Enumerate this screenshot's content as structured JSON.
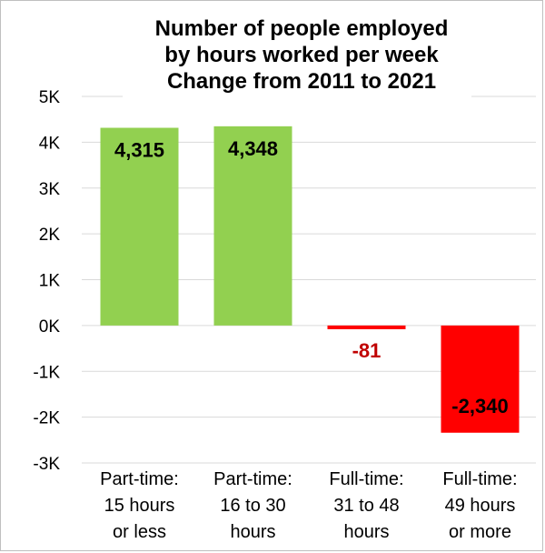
{
  "chart_data": {
    "type": "bar",
    "title": [
      "Number of people employed",
      "by hours worked per week",
      "Change from 2011 to 2021"
    ],
    "xlabel": "",
    "ylabel": "",
    "categories": [
      [
        "Part-time:",
        "15 hours",
        "or less"
      ],
      [
        "Part-time:",
        "16 to 30",
        "hours"
      ],
      [
        "Full-time:",
        "31 to 48",
        "hours"
      ],
      [
        "Full-time:",
        "49 hours",
        "or more"
      ]
    ],
    "values": [
      4315,
      4348,
      -81,
      -2340
    ],
    "data_labels": [
      "4,315",
      "4,348",
      "-81",
      "-2,340"
    ],
    "ylim": [
      -3000,
      5000
    ],
    "yticks": [
      5000,
      4000,
      3000,
      2000,
      1000,
      0,
      -1000,
      -2000,
      -3000
    ],
    "ytick_labels": [
      "5K",
      "4K",
      "3K",
      "2K",
      "1K",
      "0K",
      "-1K",
      "-2K",
      "-3K"
    ],
    "grid": true,
    "legend": "none",
    "colors": {
      "positive": "#92d050",
      "negative": "#ff0000",
      "label_positive": "#000000",
      "label_negative_outside": "#c00000",
      "label_negative_inside": "#000000",
      "grid": "#d9d9d9",
      "text": "#000000"
    }
  }
}
